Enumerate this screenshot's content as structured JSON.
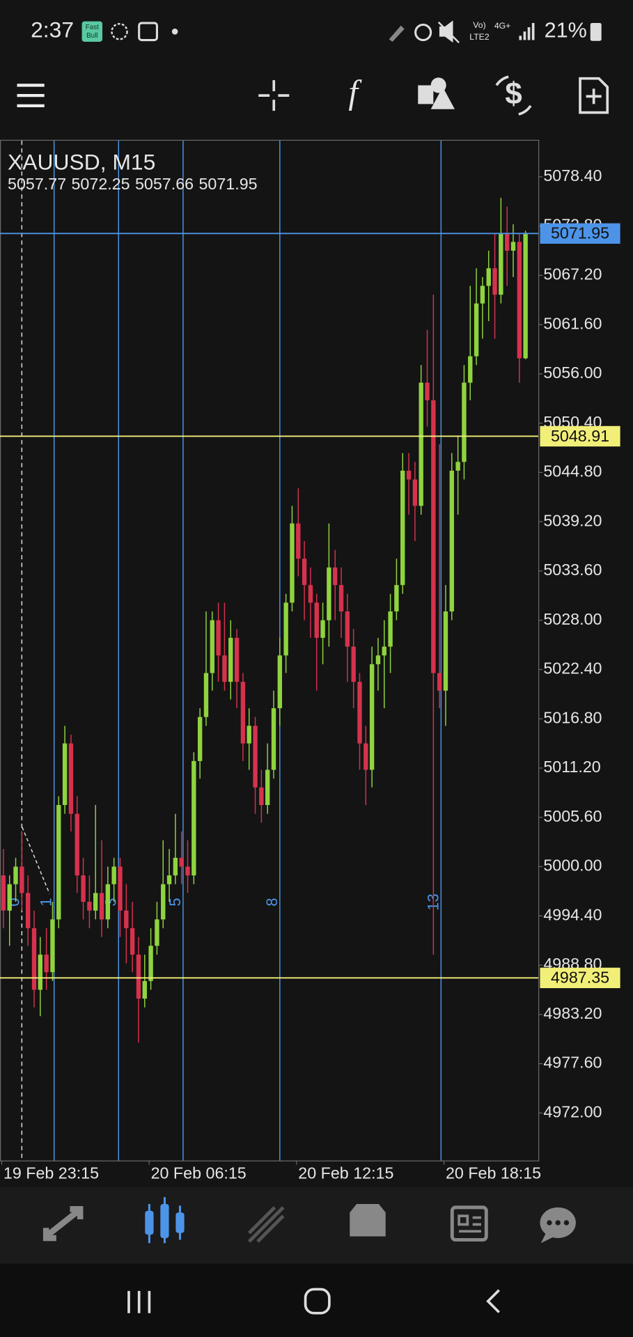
{
  "status_bar": {
    "time": "2:37",
    "app_badge": [
      "Fast",
      "Bull"
    ],
    "network": "4G+",
    "volte": "LTE2",
    "battery": "21%"
  },
  "chart_data": {
    "type": "candlestick",
    "title": "XAUUSD, M15",
    "bull_color": "#8fd43f",
    "bear_color": "#d6324e",
    "categories": [
      "19 Feb 23:15",
      null,
      null,
      null,
      null,
      null,
      null,
      null,
      null,
      null,
      null,
      null,
      null,
      null,
      null,
      null,
      null,
      null,
      null,
      null,
      null,
      null,
      null,
      null,
      "20 Feb 06:15",
      null,
      null,
      null,
      null,
      null,
      null,
      null,
      null,
      null,
      null,
      null,
      null,
      null,
      null,
      null,
      null,
      null,
      null,
      null,
      null,
      null,
      null,
      null,
      "20 Feb 12:15",
      null,
      null,
      null,
      null,
      null,
      null,
      null,
      null,
      null,
      null,
      null,
      null,
      null,
      null,
      null,
      null,
      null,
      null,
      null,
      null,
      null,
      null,
      null,
      "20 Feb 18:15",
      null,
      null,
      null,
      null,
      null,
      null,
      null,
      null,
      null,
      null,
      null,
      null,
      null
    ],
    "ohlc": [
      [
        4999,
        5002,
        4993,
        4995
      ],
      [
        4995,
        4999,
        4991,
        4998
      ],
      [
        4998,
        5001,
        4996,
        5000
      ],
      [
        5000,
        5004,
        4995,
        4997
      ],
      [
        4997,
        4999,
        4991,
        4993
      ],
      [
        4993,
        4995,
        4984,
        4986
      ],
      [
        4986,
        4992,
        4983,
        4990
      ],
      [
        4990,
        4993,
        4986,
        4988
      ],
      [
        4988,
        4996,
        4987,
        4994
      ],
      [
        4994,
        5008,
        4993,
        5007
      ],
      [
        5007,
        5016,
        5006,
        5014
      ],
      [
        5014,
        5015,
        5004,
        5006
      ],
      [
        5006,
        5008,
        4997,
        4999
      ],
      [
        4999,
        5001,
        4994,
        4996
      ],
      [
        4996,
        4999,
        4993,
        4995
      ],
      [
        4995,
        5007,
        4994,
        4997
      ],
      [
        4997,
        5003,
        4992,
        4994
      ],
      [
        4994,
        5000,
        4993,
        4998
      ],
      [
        4998,
        5001,
        4996,
        5000
      ],
      [
        5000,
        5001,
        4992,
        4995
      ],
      [
        4995,
        4998,
        4989,
        4993
      ],
      [
        4993,
        4996,
        4988,
        4990
      ],
      [
        4990,
        4992,
        4980,
        4985
      ],
      [
        4985,
        4990,
        4984,
        4987
      ],
      [
        4987,
        4993,
        4986,
        4991
      ],
      [
        4991,
        4996,
        4990,
        4994
      ],
      [
        4994,
        5003,
        4993,
        4998
      ],
      [
        4998,
        5002,
        4996,
        4999
      ],
      [
        4999,
        5006,
        4998,
        5001
      ],
      [
        5001,
        5004,
        4998,
        5000
      ],
      [
        5000,
        5003,
        4997,
        4999
      ],
      [
        4999,
        5013,
        4998,
        5012
      ],
      [
        5012,
        5018,
        5010,
        5017
      ],
      [
        5017,
        5029,
        5016,
        5022
      ],
      [
        5022,
        5029,
        5020,
        5028
      ],
      [
        5028,
        5030,
        5021,
        5024
      ],
      [
        5024,
        5030,
        5020,
        5021
      ],
      [
        5021,
        5028,
        5019,
        5026
      ],
      [
        5026,
        5027,
        5018,
        5021
      ],
      [
        5021,
        5022,
        5012,
        5014
      ],
      [
        5014,
        5018,
        5011,
        5016
      ],
      [
        5016,
        5017,
        5006,
        5009
      ],
      [
        5009,
        5011,
        5005,
        5007
      ],
      [
        5007,
        5014,
        5006,
        5011
      ],
      [
        5011,
        5020,
        5010,
        5018
      ],
      [
        5018,
        5026,
        5016,
        5024
      ],
      [
        5024,
        5031,
        5022,
        5030
      ],
      [
        5030,
        5041,
        5029,
        5039
      ],
      [
        5039,
        5043,
        5033,
        5035
      ],
      [
        5035,
        5037,
        5028,
        5032
      ],
      [
        5032,
        5034,
        5026,
        5030
      ],
      [
        5030,
        5031,
        5020,
        5026
      ],
      [
        5026,
        5030,
        5023,
        5028
      ],
      [
        5028,
        5039,
        5025,
        5034
      ],
      [
        5034,
        5036,
        5028,
        5032
      ],
      [
        5032,
        5034,
        5026,
        5029
      ],
      [
        5029,
        5031,
        5021,
        5025
      ],
      [
        5025,
        5027,
        5018,
        5021
      ],
      [
        5021,
        5022,
        5011,
        5014
      ],
      [
        5014,
        5016,
        5007,
        5011
      ],
      [
        5011,
        5025,
        5009,
        5023
      ],
      [
        5023,
        5026,
        5020,
        5024
      ],
      [
        5024,
        5028,
        5018,
        5025
      ],
      [
        5025,
        5031,
        5022,
        5029
      ],
      [
        5029,
        5035,
        5028,
        5032
      ],
      [
        5032,
        5047,
        5031,
        5045
      ],
      [
        5045,
        5047,
        5040,
        5044
      ],
      [
        5044,
        5046,
        5037,
        5041
      ],
      [
        5041,
        5057,
        5040,
        5055
      ],
      [
        5055,
        5061,
        5050,
        5053
      ],
      [
        5053,
        5065,
        4990,
        5022
      ],
      [
        5022,
        5048,
        5018,
        5020
      ],
      [
        5020,
        5032,
        5016,
        5029
      ],
      [
        5029,
        5047,
        5028,
        5045
      ],
      [
        5045,
        5049,
        5040,
        5046
      ],
      [
        5046,
        5057,
        5044,
        5055
      ],
      [
        5055,
        5066,
        5053,
        5058
      ],
      [
        5058,
        5068,
        5057,
        5064
      ],
      [
        5064,
        5067,
        5060,
        5066
      ],
      [
        5066,
        5070,
        5062,
        5068
      ],
      [
        5068,
        5072,
        5060,
        5065
      ],
      [
        5065,
        5076,
        5064,
        5072
      ],
      [
        5072,
        5075,
        5066,
        5070
      ],
      [
        5070,
        5073,
        5067,
        5071
      ],
      [
        5071,
        5072,
        5055,
        5057.77
      ],
      [
        5057.77,
        5072.25,
        5057.66,
        5071.95
      ]
    ],
    "ylim": [
      4966.6,
      5082.5
    ],
    "yticks": [
      {
        "value": 5078.4,
        "label": "5078.40"
      },
      {
        "value": 5072.8,
        "label": "5072.80"
      },
      {
        "value": 5067.2,
        "label": "5067.20"
      },
      {
        "value": 5061.6,
        "label": "5061.60"
      },
      {
        "value": 5056,
        "label": "5056.00"
      },
      {
        "value": 5050.4,
        "label": "5050.40"
      },
      {
        "value": 5044.8,
        "label": "5044.80"
      },
      {
        "value": 5039.2,
        "label": "5039.20"
      },
      {
        "value": 5033.6,
        "label": "5033.60"
      },
      {
        "value": 5028,
        "label": "5028.00"
      },
      {
        "value": 5022.4,
        "label": "5022.40"
      },
      {
        "value": 5016.8,
        "label": "5016.80"
      },
      {
        "value": 5011.2,
        "label": "5011.20"
      },
      {
        "value": 5005.6,
        "label": "5005.60"
      },
      {
        "value": 5000,
        "label": "5000.00"
      },
      {
        "value": 4994.4,
        "label": "4994.40"
      },
      {
        "value": 4988.8,
        "label": "4988.80"
      },
      {
        "value": 4983.2,
        "label": "4983.20"
      },
      {
        "value": 4977.6,
        "label": "4977.60"
      },
      {
        "value": 4972,
        "label": "4972.00"
      }
    ],
    "price_lines": [
      {
        "value": 5071.95,
        "color": "#4d94e8"
      },
      {
        "value": 5048.91,
        "color": "#f2ef78"
      },
      {
        "value": 4987.35,
        "color": "#f2ef78"
      }
    ],
    "time_zones": [
      0,
      1,
      3,
      5,
      8,
      13
    ],
    "time_zone_color": "#4d94e8"
  }
}
